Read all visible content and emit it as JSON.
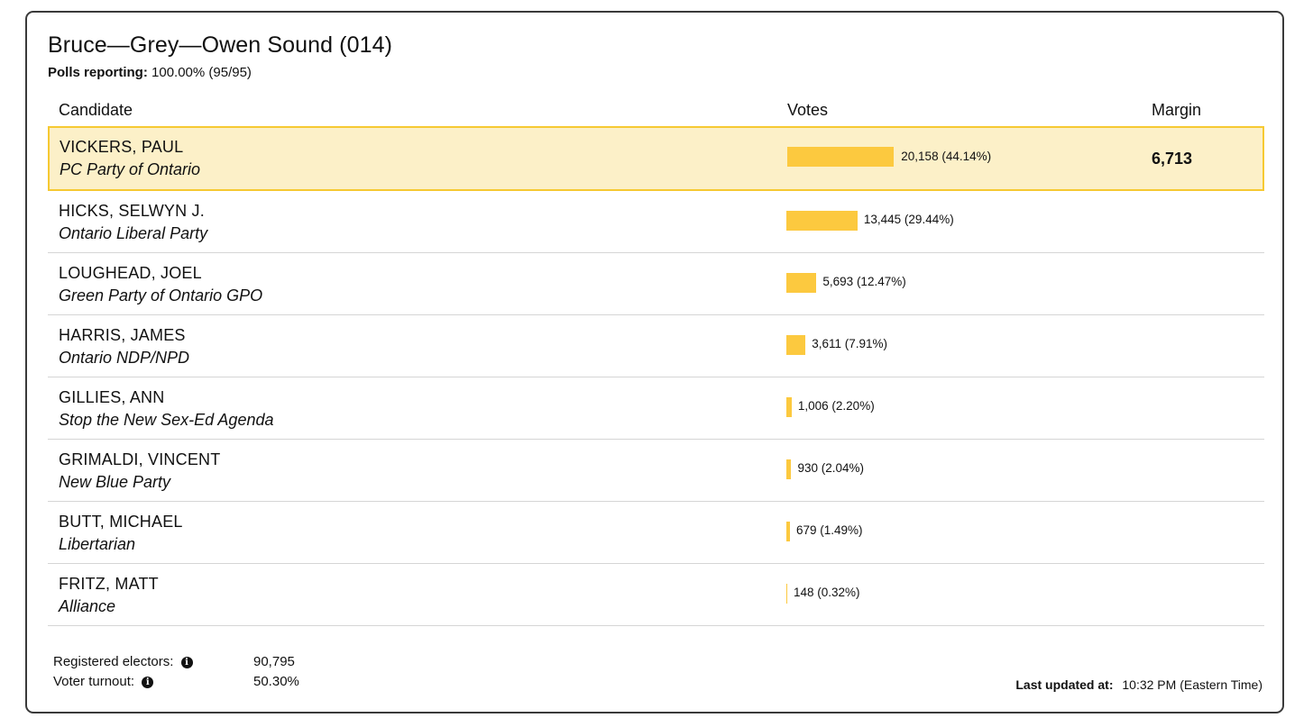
{
  "riding": {
    "title": "Bruce—Grey—Owen Sound (014)",
    "polls_label": "Polls reporting:",
    "polls_value": "100.00% (95/95)"
  },
  "table": {
    "headers": {
      "candidate": "Candidate",
      "votes": "Votes",
      "margin": "Margin"
    },
    "rows": [
      {
        "name": "VICKERS, PAUL",
        "party": "PC Party of Ontario",
        "votes": "20,158 (44.14%)",
        "pct": 44.14,
        "margin": "6,713",
        "leader": true
      },
      {
        "name": "HICKS, SELWYN J.",
        "party": "Ontario Liberal Party",
        "votes": "13,445 (29.44%)",
        "pct": 29.44
      },
      {
        "name": "LOUGHEAD, JOEL",
        "party": "Green Party of Ontario GPO",
        "votes": "5,693 (12.47%)",
        "pct": 12.47
      },
      {
        "name": "HARRIS, JAMES",
        "party": "Ontario NDP/NPD",
        "votes": "3,611 (7.91%)",
        "pct": 7.91
      },
      {
        "name": "GILLIES, ANN",
        "party": "Stop the New Sex-Ed Agenda",
        "votes": "1,006 (2.20%)",
        "pct": 2.2
      },
      {
        "name": "GRIMALDI, VINCENT",
        "party": "New Blue Party",
        "votes": "930 (2.04%)",
        "pct": 2.04
      },
      {
        "name": "BUTT, MICHAEL",
        "party": "Libertarian",
        "votes": "679 (1.49%)",
        "pct": 1.49
      },
      {
        "name": "FRITZ, MATT",
        "party": "Alliance",
        "votes": "148 (0.32%)",
        "pct": 0.32
      }
    ]
  },
  "footer": {
    "registered_label": "Registered electors:",
    "registered_value": "90,795",
    "turnout_label": "Voter turnout:",
    "turnout_value": "50.30%",
    "updated_label": "Last updated at:",
    "updated_value": "10:32 PM (Eastern Time)"
  },
  "colors": {
    "bar": "#fcc93f",
    "leader_bg": "#fcf0c8",
    "leader_border": "#f6c932"
  },
  "icons": {
    "info": "info-icon"
  }
}
